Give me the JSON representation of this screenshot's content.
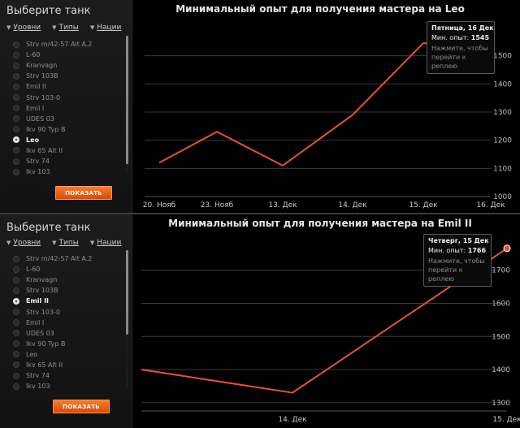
{
  "colors": {
    "line": "#e8542a",
    "grid": "#3a3a3a",
    "accent": "#ff6a1a"
  },
  "icons": {
    "filter_chevron": "chevron-down-icon"
  },
  "panels": [
    {
      "sidebar": {
        "title": "Выберите танк",
        "filters": [
          "Уровни",
          "Типы",
          "Нации"
        ],
        "tanks": [
          {
            "name": "Strv m/42-57 Alt A.2",
            "selected": false
          },
          {
            "name": "L-60",
            "selected": false
          },
          {
            "name": "Kranvagn",
            "selected": false
          },
          {
            "name": "Strv 103B",
            "selected": false
          },
          {
            "name": "Emil II",
            "selected": false
          },
          {
            "name": "Strv 103-0",
            "selected": false
          },
          {
            "name": "Emil I",
            "selected": false
          },
          {
            "name": "UDES 03",
            "selected": false
          },
          {
            "name": "Ikv 90 Typ B",
            "selected": false
          },
          {
            "name": "Leo",
            "selected": true
          },
          {
            "name": "Ikv 65 Alt II",
            "selected": false
          },
          {
            "name": "Strv 74",
            "selected": false
          },
          {
            "name": "Ikv 103",
            "selected": false
          }
        ],
        "button_label": "ПОКАЗАТЬ"
      },
      "tooltip": {
        "date": "Пятница, 16 Дек",
        "value_label": "Мин. опыт:",
        "value": "1545",
        "hint": "Нажмите, чтобы перейти к реплею"
      },
      "chart_data": {
        "type": "line",
        "title": "Минимальный опыт для получения мастера на Leo",
        "x_ticks": [
          "20. Нояб",
          "23. Нояб",
          "13. Дек",
          "14. Дек",
          "15. Дек",
          "16. Дек"
        ],
        "y_ticks": [
          1000,
          1100,
          1200,
          1300,
          1400,
          1500
        ],
        "ylim": [
          1000,
          1600
        ],
        "series": [
          {
            "values": [
              1120,
              1230,
              1110,
              1290,
              1545,
              1545
            ]
          }
        ]
      }
    },
    {
      "sidebar": {
        "title": "Выберите танк",
        "filters": [
          "Уровни",
          "Типы",
          "Нации"
        ],
        "tanks": [
          {
            "name": "Strv m/42-57 Alt A.2",
            "selected": false
          },
          {
            "name": "L-60",
            "selected": false
          },
          {
            "name": "Kranvagn",
            "selected": false
          },
          {
            "name": "Strv 103B",
            "selected": false
          },
          {
            "name": "Emil II",
            "selected": true
          },
          {
            "name": "Strv 103-0",
            "selected": false
          },
          {
            "name": "Emil I",
            "selected": false
          },
          {
            "name": "UDES 03",
            "selected": false
          },
          {
            "name": "Ikv 90 Typ B",
            "selected": false
          },
          {
            "name": "Leo",
            "selected": false
          },
          {
            "name": "Ikv 65 Alt II",
            "selected": false
          },
          {
            "name": "Strv 74",
            "selected": false
          },
          {
            "name": "Ikv 103",
            "selected": false
          }
        ],
        "button_label": "ПОКАЗАТЬ"
      },
      "tooltip": {
        "date": "Четверг, 15 Дек",
        "value_label": "Мин. опыт:",
        "value": "1766",
        "hint": "Нажмите, чтобы перейти к реплею"
      },
      "chart_data": {
        "type": "line",
        "title": "Минимальный опыт для получения мастера на Emil II",
        "x_ticks": [
          "",
          "14. Дек",
          "15. Дек"
        ],
        "y_ticks": [
          1300,
          1400,
          1500,
          1600,
          1700
        ],
        "ylim": [
          1275,
          1790
        ],
        "series": [
          {
            "values": [
              1400,
              1330,
              1766
            ]
          }
        ]
      }
    }
  ]
}
